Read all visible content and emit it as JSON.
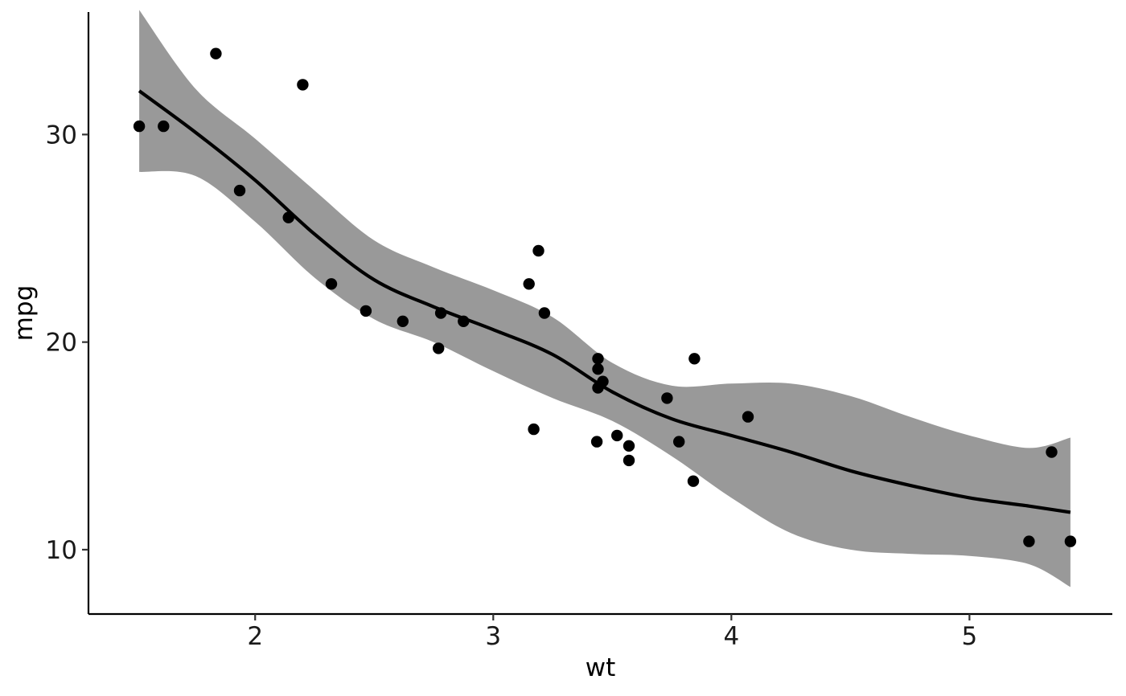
{
  "chart_data": {
    "type": "scatter",
    "title": "",
    "xlabel": "wt",
    "ylabel": "mpg",
    "xlim": [
      1.3,
      5.6
    ],
    "ylim": [
      6.9,
      35.9
    ],
    "x_ticks": [
      2,
      3,
      4,
      5
    ],
    "x_tick_labels": [
      "2",
      "3",
      "4",
      "5"
    ],
    "y_ticks": [
      10,
      20,
      30
    ],
    "y_tick_labels": [
      "10",
      "20",
      "30"
    ],
    "grid": false,
    "legend": "none",
    "colors": {
      "points": "#000000",
      "line": "#000000",
      "band": "#999999"
    },
    "points": [
      {
        "x": 1.513,
        "y": 30.4
      },
      {
        "x": 1.615,
        "y": 30.4
      },
      {
        "x": 1.835,
        "y": 33.9
      },
      {
        "x": 1.935,
        "y": 27.3
      },
      {
        "x": 2.14,
        "y": 26.0
      },
      {
        "x": 2.2,
        "y": 32.4
      },
      {
        "x": 2.32,
        "y": 22.8
      },
      {
        "x": 2.465,
        "y": 21.5
      },
      {
        "x": 2.62,
        "y": 21.0
      },
      {
        "x": 2.77,
        "y": 19.7
      },
      {
        "x": 2.78,
        "y": 21.4
      },
      {
        "x": 2.875,
        "y": 21.0
      },
      {
        "x": 3.15,
        "y": 22.8
      },
      {
        "x": 3.17,
        "y": 15.8
      },
      {
        "x": 3.19,
        "y": 24.4
      },
      {
        "x": 3.215,
        "y": 21.4
      },
      {
        "x": 3.435,
        "y": 15.2
      },
      {
        "x": 3.44,
        "y": 18.7
      },
      {
        "x": 3.44,
        "y": 19.2
      },
      {
        "x": 3.44,
        "y": 17.8
      },
      {
        "x": 3.46,
        "y": 18.1
      },
      {
        "x": 3.52,
        "y": 15.5
      },
      {
        "x": 3.57,
        "y": 15.0
      },
      {
        "x": 3.57,
        "y": 14.3
      },
      {
        "x": 3.73,
        "y": 17.3
      },
      {
        "x": 3.78,
        "y": 15.2
      },
      {
        "x": 3.84,
        "y": 13.3
      },
      {
        "x": 3.845,
        "y": 19.2
      },
      {
        "x": 4.07,
        "y": 16.4
      },
      {
        "x": 5.25,
        "y": 10.4
      },
      {
        "x": 5.345,
        "y": 14.7
      },
      {
        "x": 5.424,
        "y": 10.4
      }
    ],
    "smooth": [
      {
        "x": 1.513,
        "y": 32.1,
        "lower": 28.2,
        "upper": 36.0
      },
      {
        "x": 1.75,
        "y": 30.1,
        "lower": 28.0,
        "upper": 32.2
      },
      {
        "x": 2.0,
        "y": 27.8,
        "lower": 25.8,
        "upper": 29.8
      },
      {
        "x": 2.25,
        "y": 25.2,
        "lower": 23.1,
        "upper": 27.3
      },
      {
        "x": 2.5,
        "y": 23.0,
        "lower": 21.1,
        "upper": 24.9
      },
      {
        "x": 2.75,
        "y": 21.7,
        "lower": 20.0,
        "upper": 23.6
      },
      {
        "x": 3.0,
        "y": 20.6,
        "lower": 18.6,
        "upper": 22.5
      },
      {
        "x": 3.25,
        "y": 19.4,
        "lower": 17.3,
        "upper": 21.2
      },
      {
        "x": 3.5,
        "y": 17.6,
        "lower": 16.2,
        "upper": 19.0
      },
      {
        "x": 3.75,
        "y": 16.3,
        "lower": 14.5,
        "upper": 17.9
      },
      {
        "x": 4.0,
        "y": 15.5,
        "lower": 12.5,
        "upper": 18.0
      },
      {
        "x": 4.25,
        "y": 14.7,
        "lower": 10.8,
        "upper": 18.0
      },
      {
        "x": 4.5,
        "y": 13.8,
        "lower": 10.0,
        "upper": 17.4
      },
      {
        "x": 4.75,
        "y": 13.1,
        "lower": 9.8,
        "upper": 16.4
      },
      {
        "x": 5.0,
        "y": 12.5,
        "lower": 9.7,
        "upper": 15.5
      },
      {
        "x": 5.25,
        "y": 12.1,
        "lower": 9.3,
        "upper": 14.9
      },
      {
        "x": 5.424,
        "y": 11.8,
        "lower": 8.2,
        "upper": 15.4
      }
    ]
  }
}
